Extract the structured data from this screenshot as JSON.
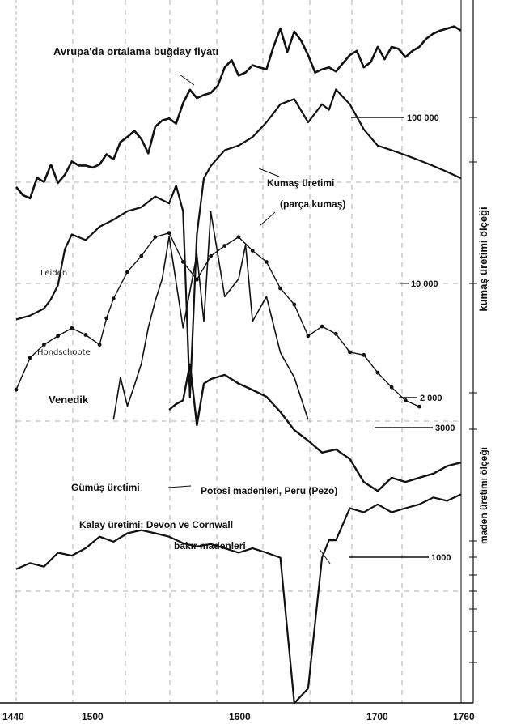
{
  "chart_data": {
    "type": "line",
    "x_axis": {
      "ticks": [
        1440,
        1500,
        1600,
        1700,
        1760
      ],
      "range": [
        1440,
        1760
      ]
    },
    "right_axes": {
      "kumas": {
        "label": "kumaş üretimi ölçeği",
        "ticks": [
          "100 000",
          "10 000",
          "2 000",
          "3000"
        ]
      },
      "maden": {
        "label": "maden üretimi ölçeği",
        "ticks": [
          "1000"
        ]
      }
    },
    "series_labels": {
      "wheat": "Avrupa'da ortalama buğday fiyatı",
      "cloth_title": "Kumaş üretimi",
      "cloth_sub": "(parça kumaş)",
      "leiden": "Leiden",
      "hondschoote": "Hondschoote",
      "venedik": "Venedik",
      "silver": "Gümüş üretimi",
      "potosi": "Potosi madenleri, Peru (Pezo)",
      "tin_1": "Kalay üretimi: Devon ve Cornwall",
      "tin_2": "bakır madenleri"
    },
    "grid": true,
    "series": [
      {
        "name": "Avrupa'da ortalama buğday fiyatı",
        "x": [
          1440,
          1445,
          1450,
          1455,
          1460,
          1465,
          1470,
          1475,
          1480,
          1485,
          1490,
          1495,
          1500,
          1505,
          1510,
          1515,
          1520,
          1525,
          1530,
          1535,
          1540,
          1545,
          1550,
          1555,
          1560,
          1565,
          1570,
          1575,
          1580,
          1585,
          1590,
          1595,
          1600,
          1605,
          1610,
          1615,
          1620,
          1625,
          1630,
          1635,
          1640,
          1645,
          1650,
          1655,
          1660,
          1665,
          1670,
          1675,
          1680,
          1685,
          1690,
          1695,
          1700,
          1705,
          1710,
          1715,
          1720,
          1725,
          1730,
          1735,
          1740,
          1745,
          1750,
          1755,
          1760
        ],
        "y": [
          0.93,
          0.85,
          0.82,
          1.02,
          0.98,
          1.15,
          0.97,
          1.05,
          1.18,
          1.14,
          1.14,
          1.12,
          1.15,
          1.25,
          1.2,
          1.37,
          1.42,
          1.48,
          1.4,
          1.26,
          1.52,
          1.58,
          1.6,
          1.55,
          1.75,
          1.88,
          1.8,
          1.83,
          1.85,
          1.92,
          2.1,
          2.17,
          2.02,
          2.05,
          2.12,
          2.1,
          2.08,
          2.3,
          2.48,
          2.25,
          2.45,
          2.36,
          2.22,
          2.05,
          2.08,
          2.1,
          2.06,
          2.14,
          2.22,
          2.26,
          2.1,
          2.15,
          2.3,
          2.18,
          2.3,
          2.28,
          2.2,
          2.26,
          2.3,
          2.38,
          2.43,
          2.46,
          2.48,
          2.5,
          2.46
        ]
      },
      {
        "name": "Leiden",
        "x": [
          1440,
          1450,
          1460,
          1465,
          1470,
          1475,
          1480,
          1490,
          1500,
          1510,
          1520,
          1530,
          1540,
          1550,
          1555,
          1560,
          1565,
          1570,
          1575,
          1580,
          1590,
          1600,
          1610,
          1620,
          1630,
          1640,
          1650,
          1660,
          1665,
          1670,
          1680,
          1690,
          1700,
          1710,
          1720,
          1730,
          1740,
          1750,
          1760
        ],
        "y": [
          10500,
          11000,
          12000,
          13500,
          16000,
          25000,
          30000,
          28000,
          33000,
          36000,
          40000,
          42000,
          48000,
          44000,
          55000,
          40000,
          4000,
          30000,
          60000,
          70000,
          85000,
          90000,
          100000,
          120000,
          150000,
          160000,
          120000,
          150000,
          140000,
          180000,
          150000,
          110000,
          90000,
          85000,
          80000,
          75000,
          70000,
          65000,
          60000
        ]
      },
      {
        "name": "Hondschoote",
        "x": [
          1440,
          1450,
          1460,
          1470,
          1480,
          1490,
          1500,
          1505,
          1510,
          1520,
          1530,
          1540,
          1550,
          1560,
          1570,
          1580,
          1590,
          1600,
          1610,
          1620,
          1630,
          1640,
          1650,
          1660,
          1670,
          1680,
          1690,
          1700,
          1710,
          1720,
          1730
        ],
        "y": [
          2500,
          4200,
          5200,
          6000,
          6800,
          6100,
          5200,
          8000,
          11000,
          17000,
          22000,
          30000,
          32000,
          20000,
          15000,
          22000,
          26000,
          30000,
          24000,
          20000,
          13000,
          10000,
          6000,
          7000,
          6200,
          4600,
          4400,
          3300,
          2600,
          2100,
          1900
        ]
      },
      {
        "name": "Venedik",
        "x": [
          1510,
          1515,
          1520,
          1525,
          1530,
          1535,
          1540,
          1545,
          1550,
          1560,
          1570,
          1575,
          1580,
          1590,
          1600,
          1605,
          1610,
          1620,
          1630,
          1640,
          1650
        ],
        "y": [
          2000,
          4000,
          2500,
          3500,
          5000,
          9000,
          14000,
          20000,
          40000,
          9000,
          30000,
          10000,
          60000,
          15000,
          20000,
          35000,
          10000,
          15000,
          6000,
          4000,
          2000
        ]
      },
      {
        "name": "Gümüş üretimi",
        "x": [
          1550,
          1555,
          1560,
          1565,
          1570,
          1575,
          1580,
          1590,
          1600,
          1610,
          1620,
          1630,
          1640,
          1650,
          1660,
          1670,
          1680,
          1690,
          1700,
          1710,
          1720,
          1730,
          1740,
          1750,
          1760
        ],
        "y": [
          4700,
          5000,
          5200,
          7600,
          4000,
          6200,
          6500,
          6800,
          6200,
          5800,
          5400,
          4600,
          3800,
          3400,
          3000,
          3100,
          2800,
          2200,
          2000,
          2300,
          2200,
          2300,
          2400,
          2600,
          2700
        ]
      },
      {
        "name": "Kalay üretimi: Devon ve Cornwall bakır madenleri",
        "x": [
          1440,
          1450,
          1460,
          1470,
          1480,
          1490,
          1500,
          1510,
          1520,
          1530,
          1540,
          1550,
          1560,
          1570,
          1580,
          1590,
          1600,
          1610,
          1620,
          1630,
          1640,
          1650,
          1660,
          1665,
          1670,
          1680,
          1690,
          1700,
          1710,
          1720,
          1730,
          1740,
          1750,
          1760
        ],
        "y": [
          4,
          4.5,
          4.2,
          5.5,
          5.2,
          6,
          7.5,
          6.8,
          8,
          8.5,
          8,
          7.5,
          6.6,
          6.2,
          6.5,
          6,
          5.5,
          6,
          5.5,
          5,
          0.3,
          0.4,
          5,
          7,
          7,
          13,
          12,
          14,
          12,
          13,
          14,
          16,
          15,
          17
        ]
      }
    ]
  }
}
